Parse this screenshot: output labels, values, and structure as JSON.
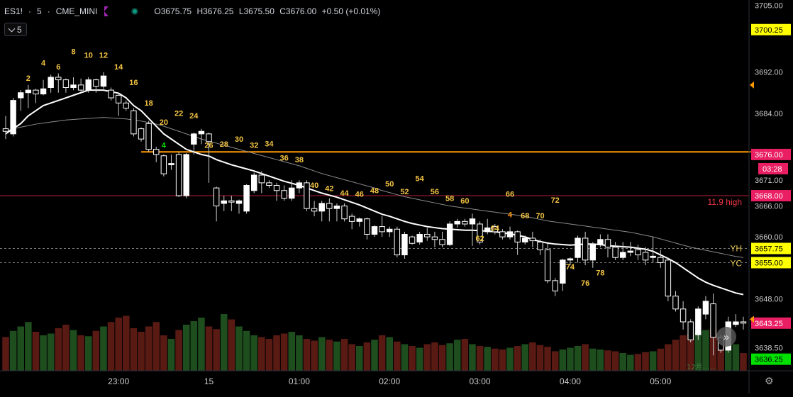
{
  "header": {
    "symbol": "ES1!",
    "interval": "5",
    "exchange": "CME_MINI",
    "open": "O3675.75",
    "high": "H3676.25",
    "low": "L3675.50",
    "close": "C3676.00",
    "change": "+0.50 (+0.01%)",
    "interval_button": "5"
  },
  "chart_data": {
    "type": "candlestick",
    "y_axis": {
      "range": [
        3634,
        3706
      ],
      "tick_labels": [
        "3700.25",
        "3692.00",
        "3684.00",
        "3676.00",
        "3671.00",
        "3668.00",
        "3666.00",
        "3660.00",
        "3657.75",
        "3655.00",
        "3648.00",
        "3643.25",
        "3638.50",
        "3636.25"
      ],
      "top_clipped": "3705.00",
      "price_tags": [
        {
          "value": 3700.25,
          "label": "3700.25",
          "color": "#ffff00",
          "text": "#000000"
        },
        {
          "value": 3676.0,
          "label": "3676.00",
          "color": "#e91e63",
          "text": "#ffffff"
        },
        {
          "value": 3668.0,
          "label": "3668.00",
          "color": "#e91e63",
          "text": "#ffffff"
        },
        {
          "value": 3657.75,
          "label": "3657.75",
          "color": "#ffff00",
          "text": "#000000"
        },
        {
          "value": 3655.0,
          "label": "3655.00",
          "color": "#ffff00",
          "text": "#000000"
        },
        {
          "value": 3643.25,
          "label": "3643.25",
          "color": "#e91e63",
          "text": "#ffffff"
        },
        {
          "value": 3636.25,
          "label": "3636.25",
          "color": "#00e000",
          "text": "#000000"
        }
      ],
      "countdown": "03:28"
    },
    "x_axis": {
      "tick_labels": [
        {
          "label": "23:00",
          "t": 15
        },
        {
          "label": "15",
          "t": 27
        },
        {
          "label": "01:00",
          "t": 39
        },
        {
          "label": "02:00",
          "t": 51
        },
        {
          "label": "03:00",
          "t": 63
        },
        {
          "label": "04:00",
          "t": 75
        },
        {
          "label": "05:00",
          "t": 87
        }
      ]
    },
    "candles": [
      [
        3681,
        3680.5,
        3683.5,
        3679
      ],
      [
        3680,
        3686.5,
        3687,
        3679.5
      ],
      [
        3687,
        3688,
        3688.5,
        3684.5
      ],
      [
        3688,
        3688.5,
        3689.5,
        3685
      ],
      [
        3688.5,
        3687.75,
        3688.75,
        3686
      ],
      [
        3687.75,
        3688.75,
        3690.5,
        3687.5
      ],
      [
        3689,
        3691,
        3691.5,
        3688
      ],
      [
        3691,
        3690.5,
        3691.75,
        3688
      ],
      [
        3690.5,
        3689,
        3690.75,
        3688
      ],
      [
        3689,
        3689.5,
        3691,
        3688.5
      ],
      [
        3689.5,
        3688.5,
        3690.75,
        3688.25
      ],
      [
        3688.5,
        3690.5,
        3691,
        3688
      ],
      [
        3690.5,
        3689.25,
        3690.75,
        3688
      ],
      [
        3689.25,
        3691.25,
        3692,
        3688.75
      ],
      [
        3688.5,
        3687,
        3689,
        3686.5
      ],
      [
        3687.5,
        3686,
        3688,
        3683.5
      ],
      [
        3686,
        3685,
        3686.5,
        3684.5
      ],
      [
        3684.5,
        3680,
        3685,
        3679.5
      ],
      [
        3681,
        3679,
        3681.25,
        3678.5
      ],
      [
        3682,
        3677,
        3682.5,
        3676.5
      ],
      [
        3677,
        3676,
        3677.5,
        3674.5
      ],
      [
        3675.75,
        3672.25,
        3676,
        3671.75
      ],
      [
        3674,
        3674.25,
        3676,
        3673
      ],
      [
        3676,
        3668,
        3676.5,
        3667.75
      ],
      [
        3668,
        3676,
        3676.25,
        3667.5
      ],
      [
        3678,
        3680,
        3680.25,
        3676
      ],
      [
        3680,
        3680.5,
        3681,
        3678
      ],
      [
        3680,
        3678.5,
        3680.25,
        3670.5
      ],
      [
        3669.5,
        3666,
        3669.75,
        3663
      ],
      [
        3666.5,
        3667,
        3668,
        3665
      ],
      [
        3667,
        3666.75,
        3668,
        3665
      ],
      [
        3666.5,
        3667,
        3667.25,
        3664.5
      ],
      [
        3665,
        3670,
        3670.25,
        3664.5
      ],
      [
        3669,
        3672,
        3672.5,
        3668.5
      ],
      [
        3672,
        3670.5,
        3672.75,
        3668.5
      ],
      [
        3670.5,
        3670,
        3671,
        3669.5
      ],
      [
        3670,
        3669,
        3670.5,
        3667
      ],
      [
        3669,
        3667.5,
        3670,
        3667
      ],
      [
        3667.5,
        3669.5,
        3671,
        3667
      ],
      [
        3669.5,
        3670.5,
        3671,
        3668.5
      ],
      [
        3670.5,
        3665.5,
        3671,
        3665
      ],
      [
        3665.5,
        3665,
        3667,
        3664
      ],
      [
        3665,
        3666.5,
        3667,
        3663
      ],
      [
        3666.5,
        3665.5,
        3667.5,
        3663
      ],
      [
        3665.5,
        3666,
        3666.5,
        3663
      ],
      [
        3666,
        3663.5,
        3666.5,
        3663
      ],
      [
        3664,
        3663,
        3664.5,
        3661.5
      ],
      [
        3663,
        3663.5,
        3663.75,
        3662
      ],
      [
        3663.5,
        3660.5,
        3663.75,
        3659.5
      ],
      [
        3660.5,
        3662,
        3662.25,
        3660
      ],
      [
        3662,
        3661,
        3664,
        3660
      ],
      [
        3661,
        3661.5,
        3662,
        3660
      ],
      [
        3661.5,
        3656.5,
        3662,
        3656
      ],
      [
        3656.5,
        3660.5,
        3661,
        3655.75
      ],
      [
        3660,
        3658.75,
        3660.25,
        3658.5
      ],
      [
        3659,
        3660.5,
        3661,
        3658.5
      ],
      [
        3660.5,
        3660,
        3661.75,
        3659.25
      ],
      [
        3660,
        3659.5,
        3661,
        3658
      ],
      [
        3659.5,
        3658.5,
        3661,
        3658
      ],
      [
        3658.5,
        3662.5,
        3663,
        3658.25
      ],
      [
        3662.5,
        3663,
        3663.5,
        3661.75
      ],
      [
        3663,
        3662.5,
        3663.5,
        3662
      ],
      [
        3662.5,
        3663.5,
        3664.5,
        3658.25
      ],
      [
        3662.5,
        3659,
        3663,
        3658.5
      ],
      [
        3661,
        3661.75,
        3663.5,
        3660.5
      ],
      [
        3662,
        3661,
        3662.5,
        3660.5
      ],
      [
        3661,
        3660,
        3661.5,
        3659.5
      ],
      [
        3660,
        3661,
        3662,
        3659.5
      ],
      [
        3661,
        3659,
        3661.25,
        3656.5
      ],
      [
        3659,
        3659.75,
        3660.25,
        3658.5
      ],
      [
        3659.75,
        3659.25,
        3661,
        3658
      ],
      [
        3659,
        3657.5,
        3659.5,
        3656.5
      ],
      [
        3657.5,
        3651.5,
        3659,
        3651
      ],
      [
        3651.5,
        3649.5,
        3652,
        3648.5
      ],
      [
        3651,
        3655.5,
        3655.75,
        3649.5
      ],
      [
        3655.5,
        3655.75,
        3656,
        3654.5
      ],
      [
        3656,
        3659.75,
        3660.25,
        3655
      ],
      [
        3659.75,
        3655.5,
        3661,
        3654.5
      ],
      [
        3655.5,
        3658.5,
        3659,
        3654
      ],
      [
        3658.5,
        3659.5,
        3660.5,
        3658
      ],
      [
        3659.5,
        3658,
        3660.5,
        3656
      ],
      [
        3658,
        3656,
        3659,
        3655.5
      ],
      [
        3656,
        3657,
        3659,
        3655.5
      ],
      [
        3657,
        3657.25,
        3659,
        3656.25
      ],
      [
        3657.5,
        3656.5,
        3658.5,
        3655.5
      ],
      [
        3657,
        3655.5,
        3658,
        3654.5
      ],
      [
        3656,
        3656.25,
        3660,
        3655
      ],
      [
        3656,
        3655,
        3657.5,
        3654
      ],
      [
        3655.5,
        3648.5,
        3656,
        3647.5
      ],
      [
        3648.5,
        3646,
        3649.5,
        3645.5
      ],
      [
        3646,
        3643.5,
        3647.5,
        3642
      ],
      [
        3643.5,
        3640,
        3644,
        3639.5
      ],
      [
        3641,
        3646,
        3646.5,
        3640
      ],
      [
        3645,
        3647.5,
        3648.5,
        3644
      ],
      [
        3647,
        3640.5,
        3649,
        3637
      ],
      [
        3640.5,
        3638,
        3641,
        3637.5
      ],
      [
        3638,
        3643.5,
        3644.5,
        3637.5
      ],
      [
        3643,
        3643.5,
        3645,
        3642.5
      ],
      [
        3643.5,
        3643.25,
        3644.5,
        3642
      ]
    ],
    "volume": [
      38,
      45,
      50,
      55,
      44,
      40,
      42,
      48,
      52,
      46,
      40,
      39,
      45,
      50,
      55,
      60,
      62,
      48,
      44,
      50,
      55,
      40,
      36,
      46,
      52,
      56,
      60,
      50,
      47,
      64,
      58,
      50,
      45,
      40,
      38,
      36,
      40,
      42,
      44,
      40,
      36,
      34,
      38,
      35,
      33,
      36,
      30,
      28,
      32,
      35,
      40,
      38,
      33,
      30,
      28,
      26,
      30,
      32,
      29,
      31,
      35,
      36,
      30,
      28,
      27,
      25,
      24,
      26,
      28,
      30,
      32,
      29,
      27,
      22,
      24,
      26,
      28,
      30,
      25,
      24,
      23,
      22,
      20,
      18,
      19,
      21,
      22,
      25,
      30,
      35,
      40,
      42,
      45,
      46,
      47,
      38,
      35,
      30,
      20
    ],
    "sma_fast": [
      3680,
      3681,
      3682,
      3683.5,
      3684.5,
      3685.5,
      3686,
      3686.5,
      3687,
      3687.5,
      3688,
      3688.5,
      3688.5,
      3688.5,
      3688.2,
      3687.9,
      3687,
      3685.5,
      3684.5,
      3683,
      3681.5,
      3680,
      3679,
      3678,
      3677,
      3676.5,
      3676,
      3675.7,
      3675,
      3674.5,
      3674,
      3673.6,
      3673.2,
      3672.8,
      3672.3,
      3671.8,
      3671.3,
      3670.8,
      3670.4,
      3670,
      3669.5,
      3669,
      3668.5,
      3668.1,
      3667.7,
      3667.2,
      3666.7,
      3666.2,
      3665.6,
      3665,
      3664.4,
      3664,
      3663.5,
      3663,
      3662.6,
      3662.3,
      3662,
      3661.8,
      3661.6,
      3661.5,
      3661.4,
      3661.3,
      3661.3,
      3661.2,
      3661.1,
      3661,
      3660.8,
      3660.6,
      3660.3,
      3660,
      3659.5,
      3659.1,
      3658.8,
      3658.6,
      3658.5,
      3658.4,
      3658.5,
      3658.6,
      3658.6,
      3658.5,
      3658.3,
      3658.2,
      3658.1,
      3658,
      3657.8,
      3657.6,
      3657.2,
      3656.5,
      3655.8,
      3655,
      3654,
      3653,
      3652,
      3651.2,
      3650.6,
      3650.1,
      3649.6,
      3649.1,
      3648.8
    ],
    "sma_slow": [
      3680.5,
      3681,
      3681.3,
      3681.6,
      3681.9,
      3682.1,
      3682.3,
      3682.5,
      3682.7,
      3682.8,
      3682.9,
      3683,
      3683.1,
      3683.2,
      3683.1,
      3683,
      3682.9,
      3682.7,
      3682.5,
      3682.2,
      3681.9,
      3681.5,
      3681,
      3680.5,
      3680,
      3679.5,
      3679,
      3678.6,
      3678.2,
      3677.8,
      3677.4,
      3677,
      3676.6,
      3676.2,
      3675.8,
      3675.4,
      3675,
      3674.6,
      3674.2,
      3673.8,
      3673.3,
      3672.8,
      3672.3,
      3671.9,
      3671.5,
      3671.1,
      3670.7,
      3670.3,
      3669.9,
      3669.5,
      3669,
      3668.6,
      3668.2,
      3667.8,
      3667.5,
      3667.2,
      3666.9,
      3666.6,
      3666.3,
      3666,
      3665.8,
      3665.6,
      3665.4,
      3665.2,
      3665,
      3664.8,
      3664.6,
      3664.4,
      3664.2,
      3664,
      3663.7,
      3663.4,
      3663.1,
      3662.9,
      3662.7,
      3662.5,
      3662.3,
      3662.1,
      3661.9,
      3661.7,
      3661.5,
      3661.3,
      3661.1,
      3660.9,
      3660.6,
      3660.3,
      3660,
      3659.6,
      3659.2,
      3658.8,
      3658.4,
      3658,
      3657.7,
      3657.4,
      3657.1,
      3656.8,
      3656.5,
      3656.2,
      3656
    ],
    "horizontal_lines": [
      {
        "value": 3676.5,
        "color": "#ff9800",
        "from": 18,
        "to": 99,
        "style": "solid"
      },
      {
        "value": 3668.0,
        "color": "#5a0f1e",
        "style": "solid"
      },
      {
        "value": 3657.75,
        "color": "#777777",
        "style": "dashed"
      },
      {
        "value": 3655.0,
        "color": "#777777",
        "style": "dashed"
      }
    ],
    "line_labels": [
      {
        "text": "11.9 high",
        "value": 3666.2,
        "color": "#f23645"
      },
      {
        "text": "YH",
        "value": 3657.2,
        "color": "#e0c050"
      },
      {
        "text": "YC",
        "value": 3654.3,
        "color": "#e0c050"
      }
    ],
    "bar_counts": [
      {
        "text": "2",
        "i": 3,
        "y": 3690.3
      },
      {
        "text": "4",
        "i": 5,
        "y": 3693.3
      },
      {
        "text": "6",
        "i": 7,
        "y": 3692.5
      },
      {
        "text": "8",
        "i": 9,
        "y": 3695.5
      },
      {
        "text": "10",
        "i": 11,
        "y": 3694.8
      },
      {
        "text": "12",
        "i": 13,
        "y": 3694.8
      },
      {
        "text": "14",
        "i": 15,
        "y": 3692.5
      },
      {
        "text": "16",
        "i": 17,
        "y": 3689.5
      },
      {
        "text": "18",
        "i": 19,
        "y": 3685.5
      },
      {
        "text": "20",
        "i": 21,
        "y": 3681.8
      },
      {
        "text": "4",
        "i": 21,
        "y": 3677.3,
        "color": "#00e000"
      },
      {
        "text": "22",
        "i": 23,
        "y": 3683.5
      },
      {
        "text": "24",
        "i": 25,
        "y": 3683
      },
      {
        "text": "26",
        "i": 27,
        "y": 3677.3
      },
      {
        "text": "28",
        "i": 29,
        "y": 3677.5
      },
      {
        "text": "30",
        "i": 31,
        "y": 3678.5
      },
      {
        "text": "32",
        "i": 33,
        "y": 3677.3
      },
      {
        "text": "34",
        "i": 35,
        "y": 3677.6
      },
      {
        "text": "36",
        "i": 37,
        "y": 3674.8
      },
      {
        "text": "38",
        "i": 39,
        "y": 3674.5
      },
      {
        "text": "40",
        "i": 41,
        "y": 3669.5
      },
      {
        "text": "42",
        "i": 43,
        "y": 3668.9
      },
      {
        "text": "44",
        "i": 45,
        "y": 3668
      },
      {
        "text": "46",
        "i": 47,
        "y": 3667.8
      },
      {
        "text": "48",
        "i": 49,
        "y": 3668.5
      },
      {
        "text": "50",
        "i": 51,
        "y": 3669.8
      },
      {
        "text": "52",
        "i": 53,
        "y": 3668.3
      },
      {
        "text": "54",
        "i": 55,
        "y": 3670.8
      },
      {
        "text": "56",
        "i": 57,
        "y": 3668.3
      },
      {
        "text": "58",
        "i": 59,
        "y": 3667
      },
      {
        "text": "60",
        "i": 61,
        "y": 3666.5
      },
      {
        "text": "62",
        "i": 63,
        "y": 3659.2
      },
      {
        "text": "64",
        "i": 65,
        "y": 3661.2
      },
      {
        "text": "66",
        "i": 67,
        "y": 3667.8
      },
      {
        "text": "4",
        "i": 67,
        "y": 3663.8,
        "color": "#ff9800"
      },
      {
        "text": "68",
        "i": 69,
        "y": 3663.6
      },
      {
        "text": "70",
        "i": 71,
        "y": 3663.6
      },
      {
        "text": "72",
        "i": 73,
        "y": 3666.6
      },
      {
        "text": "74",
        "i": 75,
        "y": 3653.7
      },
      {
        "text": "76",
        "i": 77,
        "y": 3650.5
      },
      {
        "text": "78",
        "i": 79,
        "y": 3652.5
      }
    ],
    "watermark": "12月……"
  },
  "controls": {
    "scroll_to_latest": "»"
  }
}
